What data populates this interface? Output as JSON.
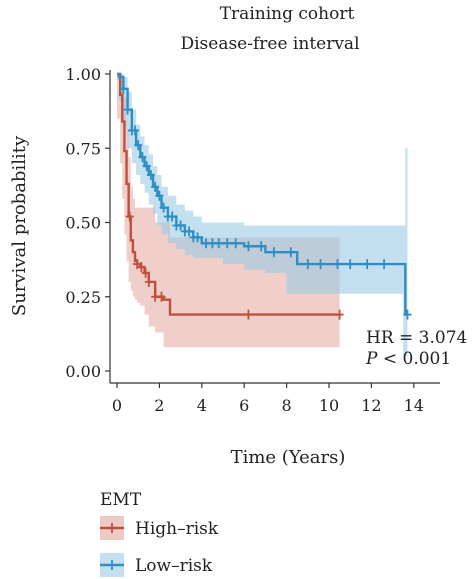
{
  "chart_data": {
    "type": "line",
    "title": "Training cohort",
    "subtitle": "Disease-free interval",
    "xlabel": "Time (Years)",
    "ylabel": "Survival probability",
    "xlim": [
      0,
      14.2
    ],
    "ylim": [
      0,
      1.0
    ],
    "xticks": [
      0,
      2,
      4,
      6,
      8,
      10,
      12,
      14
    ],
    "yticks": [
      0.0,
      0.25,
      0.5,
      0.75,
      1.0
    ],
    "ytick_labels": [
      "0.00",
      "0.25",
      "0.50",
      "0.75",
      "1.00"
    ],
    "grid": false,
    "legend": {
      "title": "EMT",
      "placement": "bottom-left"
    },
    "annotations": {
      "hr": "HR = 3.074",
      "p_label": "P",
      "p_rest": " < 0.001"
    },
    "series": [
      {
        "name": "High–risk",
        "color": "#c0503e",
        "ci_color": "#e3a69c",
        "x": [
          0,
          0.15,
          0.25,
          0.35,
          0.45,
          0.55,
          0.65,
          0.75,
          0.85,
          0.95,
          1.1,
          1.3,
          1.5,
          1.8,
          2.2,
          2.5,
          6.0,
          10.5
        ],
        "y": [
          1.0,
          0.93,
          0.84,
          0.74,
          0.63,
          0.52,
          0.44,
          0.4,
          0.37,
          0.36,
          0.35,
          0.33,
          0.3,
          0.25,
          0.24,
          0.19,
          0.19,
          0.19
        ],
        "ci_upper": [
          1.0,
          1.0,
          0.98,
          0.92,
          0.82,
          0.72,
          0.62,
          0.58,
          0.55,
          0.55,
          0.55,
          0.55,
          0.55,
          0.5,
          0.5,
          0.45,
          0.45,
          0.45
        ],
        "ci_lower": [
          1.0,
          0.85,
          0.7,
          0.58,
          0.46,
          0.37,
          0.3,
          0.27,
          0.25,
          0.24,
          0.23,
          0.22,
          0.19,
          0.15,
          0.13,
          0.08,
          0.08,
          0.08
        ],
        "censors": [
          0.6,
          0.95,
          1.15,
          1.35,
          1.5,
          1.8,
          2.1,
          6.2,
          10.5
        ]
      },
      {
        "name": "Low–risk",
        "color": "#2d8fc6",
        "ci_color": "#9ccbe6",
        "x": [
          0,
          0.1,
          0.3,
          0.5,
          0.7,
          0.9,
          1.1,
          1.3,
          1.5,
          1.7,
          1.9,
          2.1,
          2.4,
          2.8,
          3.2,
          3.6,
          4.0,
          4.5,
          5.0,
          6.0,
          7.0,
          8.0,
          8.5,
          10.0,
          12.0,
          13.5,
          13.6,
          13.7
        ],
        "y": [
          1.0,
          0.99,
          0.95,
          0.88,
          0.81,
          0.76,
          0.72,
          0.69,
          0.66,
          0.62,
          0.59,
          0.55,
          0.52,
          0.49,
          0.47,
          0.45,
          0.43,
          0.43,
          0.43,
          0.42,
          0.4,
          0.4,
          0.36,
          0.36,
          0.36,
          0.36,
          0.19,
          0.19
        ],
        "ci_upper": [
          1.0,
          1.0,
          0.99,
          0.94,
          0.88,
          0.83,
          0.79,
          0.76,
          0.73,
          0.69,
          0.66,
          0.62,
          0.59,
          0.56,
          0.54,
          0.52,
          0.5,
          0.5,
          0.5,
          0.49,
          0.49,
          0.49,
          0.49,
          0.49,
          0.49,
          0.49,
          0.75,
          0.75
        ],
        "ci_lower": [
          1.0,
          0.98,
          0.91,
          0.82,
          0.75,
          0.7,
          0.66,
          0.63,
          0.6,
          0.56,
          0.53,
          0.49,
          0.46,
          0.43,
          0.41,
          0.39,
          0.38,
          0.38,
          0.38,
          0.36,
          0.34,
          0.33,
          0.26,
          0.26,
          0.26,
          0.26,
          0.05,
          0.05
        ],
        "censors": [
          0.3,
          0.5,
          0.7,
          0.85,
          1.0,
          1.2,
          1.4,
          1.6,
          1.8,
          2.0,
          2.2,
          2.4,
          2.6,
          2.8,
          3.0,
          3.2,
          3.4,
          3.6,
          3.8,
          4.2,
          4.5,
          4.8,
          5.2,
          5.6,
          6.2,
          6.8,
          7.4,
          8.2,
          9.0,
          9.6,
          10.4,
          11.0,
          11.8,
          12.6,
          13.7
        ]
      }
    ]
  }
}
